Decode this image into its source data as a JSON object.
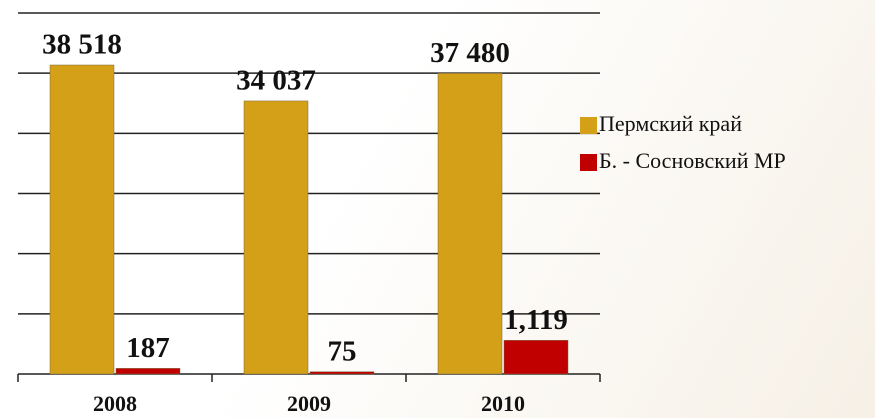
{
  "chart_data": {
    "type": "bar",
    "categories": [
      "2008",
      "2009",
      "2010"
    ],
    "series": [
      {
        "name": "Пермский край",
        "color": "#d4a017",
        "values": [
          38518,
          34037,
          37480
        ],
        "value_labels": [
          "38 518",
          "34 037",
          "37 480"
        ]
      },
      {
        "name": "Б. - Сосновский МР",
        "color": "#c00000",
        "values": [
          187,
          75,
          1119
        ],
        "value_labels": [
          "187",
          "75",
          "1,119"
        ],
        "axis": "y2"
      }
    ],
    "ylim": [
      0,
      45000
    ],
    "yticks": [
      0,
      7500,
      15000,
      22500,
      30000,
      37500,
      45000
    ],
    "y2lim": [
      0,
      12000
    ],
    "grid": true,
    "legend": "right"
  }
}
